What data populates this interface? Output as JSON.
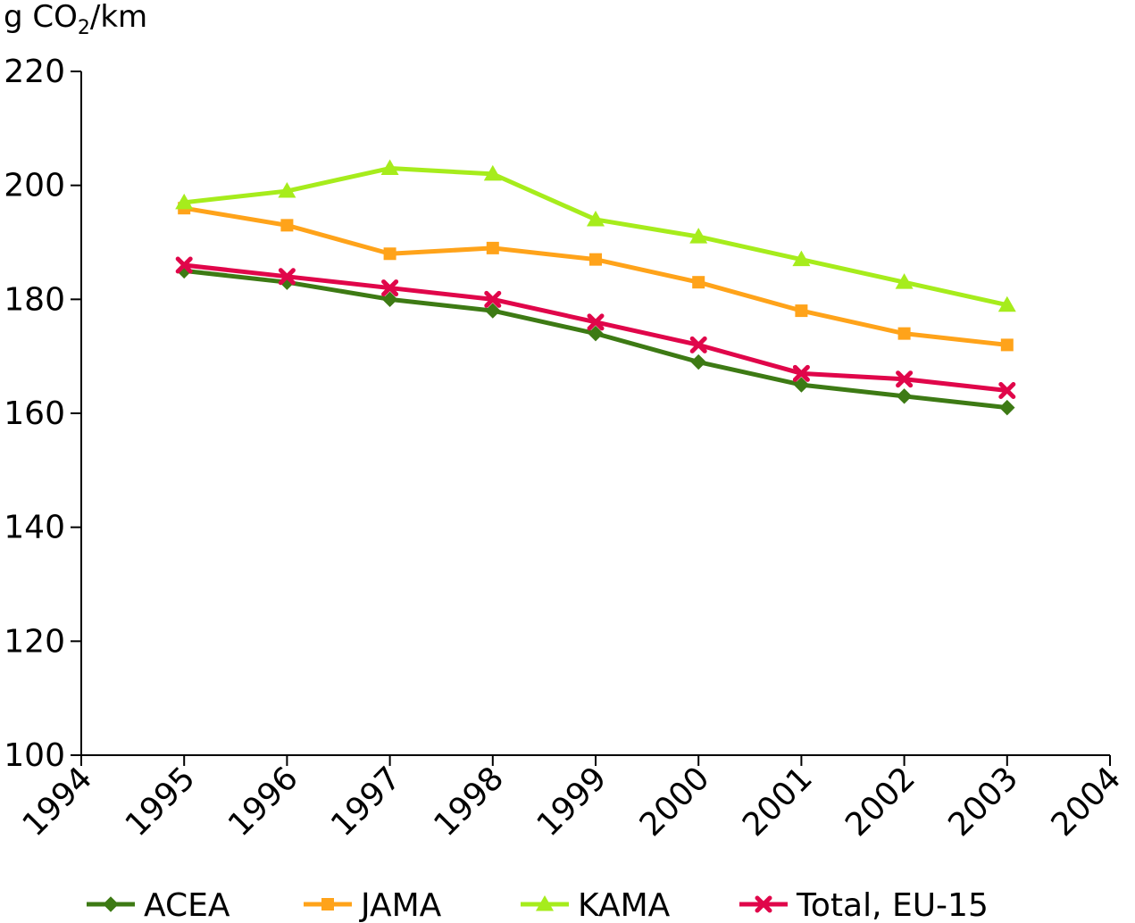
{
  "chart_data": {
    "type": "line",
    "ylabel": {
      "prefix": "g CO",
      "subscript": "2",
      "suffix": "/km"
    },
    "x_ticks": [
      "1994",
      "1995",
      "1996",
      "1997",
      "1998",
      "1999",
      "2000",
      "2001",
      "2002",
      "2003",
      "2004"
    ],
    "y_ticks": [
      "100",
      "120",
      "140",
      "160",
      "180",
      "200",
      "220"
    ],
    "xlim": [
      1994,
      2004
    ],
    "ylim": [
      100,
      220
    ],
    "grid": false,
    "legend_position": "bottom",
    "x": [
      1995,
      1996,
      1997,
      1998,
      1999,
      2000,
      2001,
      2002,
      2003
    ],
    "series": [
      {
        "name": "ACEA",
        "color": "#3d7a14",
        "marker": "diamond",
        "values": [
          185,
          183,
          180,
          178,
          174,
          169,
          165,
          163,
          161
        ]
      },
      {
        "name": "JAMA",
        "color": "#ffa31a",
        "marker": "square",
        "values": [
          196,
          193,
          188,
          189,
          187,
          183,
          178,
          174,
          172
        ]
      },
      {
        "name": "KAMA",
        "color": "#a6ec1c",
        "marker": "triangle",
        "values": [
          197,
          199,
          203,
          202,
          194,
          191,
          187,
          183,
          179
        ]
      },
      {
        "name": "Total, EU-15",
        "color": "#e0064a",
        "marker": "cross",
        "values": [
          186,
          184,
          182,
          180,
          176,
          172,
          167,
          166,
          164
        ]
      }
    ]
  }
}
